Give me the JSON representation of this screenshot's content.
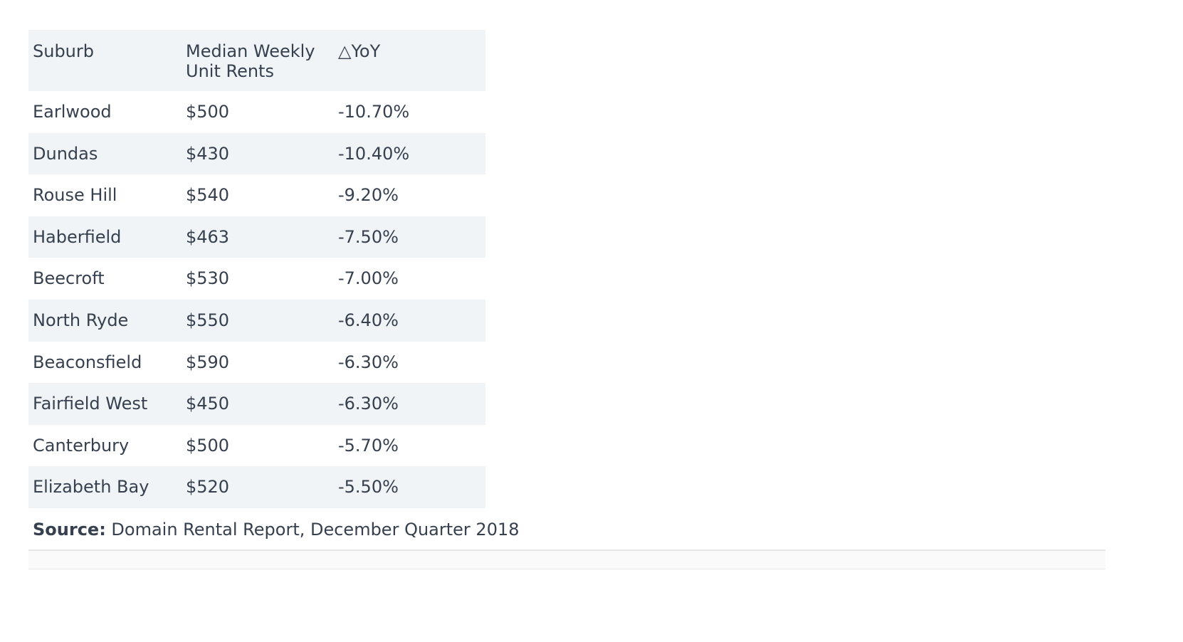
{
  "table": {
    "headers": [
      "Suburb",
      "Median Weekly\nUnit Rents",
      "△YoY"
    ],
    "rows": [
      [
        "Earlwood",
        "$500",
        "-10.70%"
      ],
      [
        "Dundas",
        "$430",
        "-10.40%"
      ],
      [
        "Rouse Hill",
        "$540",
        "-9.20%"
      ],
      [
        "Haberfield",
        "$463",
        "-7.50%"
      ],
      [
        "Beecroft",
        "$530",
        "-7.00%"
      ],
      [
        "North Ryde",
        "$550",
        "-6.40%"
      ],
      [
        "Beaconsfield",
        "$590",
        "-6.30%"
      ],
      [
        "Fairfield West",
        "$450",
        "-6.30%"
      ],
      [
        "Canterbury",
        "$500",
        "-5.70%"
      ],
      [
        "Elizabeth Bay",
        "$520",
        "-5.50%"
      ]
    ]
  },
  "source": {
    "label": "Source:",
    "text": " Domain Rental Report, December Quarter 2018"
  },
  "colors": {
    "text": "#36404e",
    "stripe": "#f0f4f7",
    "divider": "#e6e6e6"
  }
}
